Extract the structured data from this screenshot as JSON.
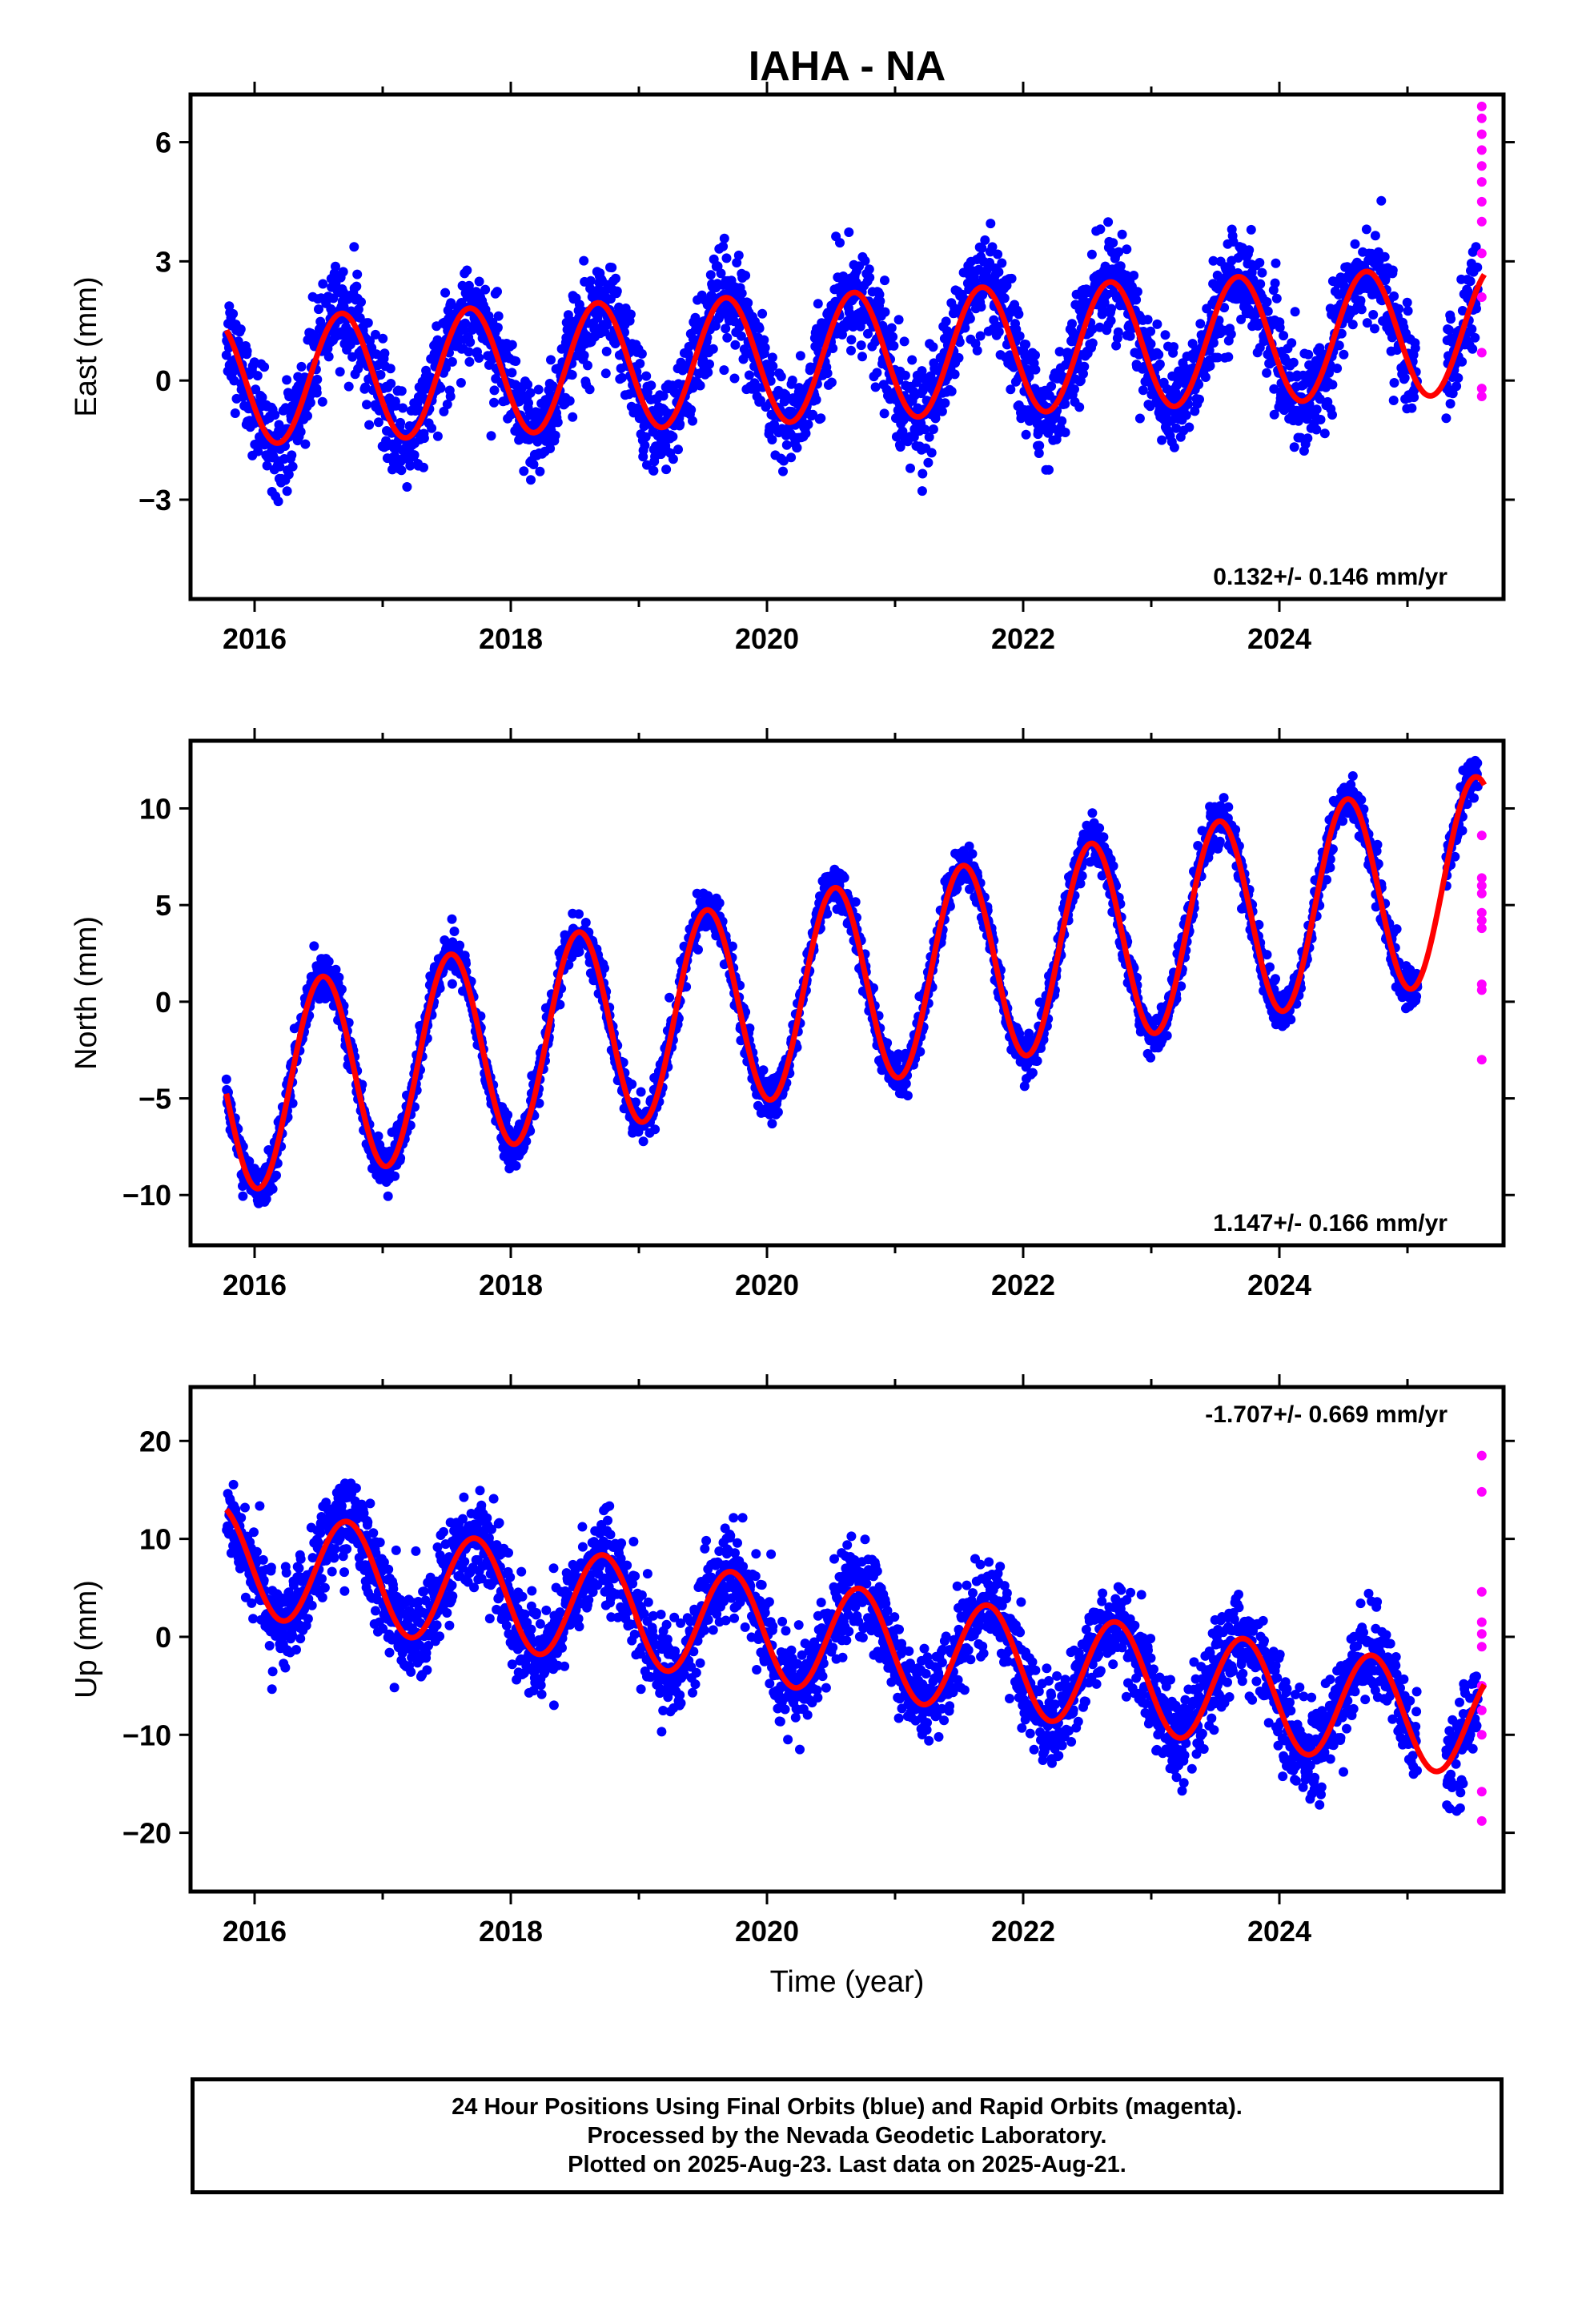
{
  "title": "IAHA - NA",
  "footer": {
    "line1": "24 Hour Positions Using Final Orbits (blue) and Rapid Orbits (magenta).",
    "line2": "Processed by the Nevada Geodetic Laboratory.",
    "line3": "Plotted on 2025-Aug-23. Last data on 2025-Aug-21."
  },
  "colors": {
    "final": "#0000ff",
    "rapid": "#ff00ff",
    "model": "#ff0000",
    "frame": "#000000"
  },
  "chart_data": [
    {
      "type": "scatter",
      "ylabel": "East (mm)",
      "xlim": [
        2015.5,
        2025.75
      ],
      "ylim": [
        -5.5,
        7.2
      ],
      "yticks": [
        -3,
        0,
        3,
        6
      ],
      "xticks": [
        2016,
        2018,
        2020,
        2022,
        2024
      ],
      "rate": "0.132+/- 0.146 mm/yr",
      "rate_position": "bottom-right",
      "model": {
        "amplitude": 1.6,
        "phase_peak": 0.68,
        "trend_mm_per_yr": 0.132,
        "offset": 0.0,
        "scatter": 1.1,
        "start": 2015.78,
        "end": 2025.55
      },
      "rapid_points": [
        6.9,
        6.6,
        6.2,
        5.8,
        5.4,
        5.0,
        4.5,
        4.0,
        3.2,
        2.1,
        0.7,
        -0.2,
        -0.4
      ]
    },
    {
      "type": "scatter",
      "ylabel": "North (mm)",
      "xlim": [
        2015.5,
        2025.75
      ],
      "ylim": [
        -12.6,
        13.5
      ],
      "yticks": [
        -10,
        -5,
        0,
        5,
        10
      ],
      "xticks": [
        2016,
        2018,
        2020,
        2022,
        2024
      ],
      "rate": "1.147+/- 0.166 mm/yr",
      "rate_position": "bottom-right",
      "model": {
        "amplitude": 5.2,
        "phase_peak": 0.53,
        "trend_mm_per_yr": 1.147,
        "offset": -4.5,
        "scatter": 1.0,
        "start": 2015.78,
        "end": 2025.55
      },
      "rapid_points": [
        8.6,
        6.4,
        6.0,
        5.6,
        4.6,
        4.2,
        3.8,
        0.9,
        0.6,
        -3.0
      ]
    },
    {
      "type": "scatter",
      "ylabel": "Up (mm)",
      "xlabel": "Time (year)",
      "xlim": [
        2015.5,
        2025.75
      ],
      "ylim": [
        -26,
        25.5
      ],
      "yticks": [
        -20,
        -10,
        0,
        10,
        20
      ],
      "xticks": [
        2016,
        2018,
        2020,
        2022,
        2024
      ],
      "rate": "-1.707+/- 0.669 mm/yr",
      "rate_position": "top-right",
      "model": {
        "amplitude": 5.5,
        "phase_peak": 0.72,
        "trend_mm_per_yr": -1.707,
        "offset": 7.5,
        "scatter": 4.2,
        "start": 2015.78,
        "end": 2025.55
      },
      "rapid_points": [
        18.5,
        14.8,
        4.6,
        1.5,
        0.3,
        -1.0,
        -5.0,
        -7.5,
        -10.0,
        -15.8,
        -18.8
      ]
    }
  ]
}
